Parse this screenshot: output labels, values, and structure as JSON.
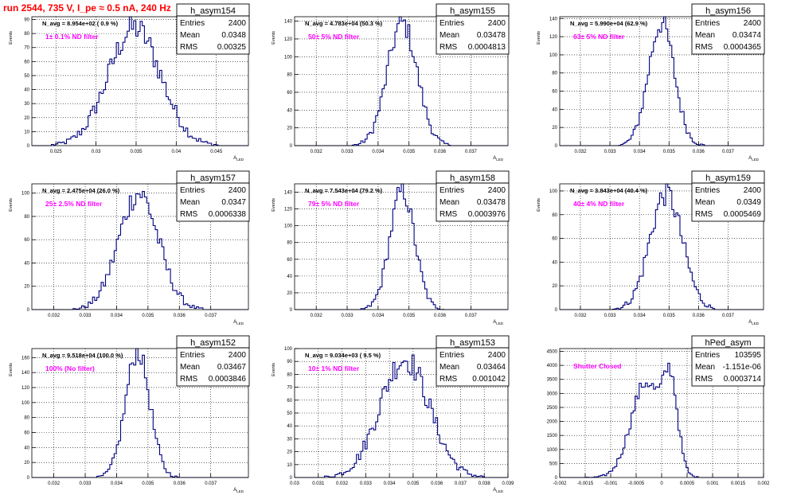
{
  "header": {
    "run_title": "run 2544,   735 V, I_pe ≈ 0.5 nA, 240 Hz"
  },
  "stat_labels": {
    "entries": "Entries",
    "mean": "Mean",
    "rms": "RMS"
  },
  "colors": {
    "hist": "#000080",
    "filter_label": "#ff00ff",
    "title": "#ff0000",
    "grid": "#000000"
  },
  "chart_data": [
    {
      "type": "bar",
      "name": "h_asym154",
      "navg": "N_avg = 8.954e+02 ( 0.9 %)",
      "filter": "1± 0.1% ND filter",
      "ylabel": "Events",
      "xlabel": "A_LED",
      "xlim": [
        0.022,
        0.049
      ],
      "ylim": [
        0,
        92
      ],
      "xticks": [
        0.025,
        0.03,
        0.035,
        0.04,
        0.045
      ],
      "xtick_labels": [
        "0.025",
        "0.03",
        "0.035",
        "0.04",
        "0.045"
      ],
      "yticks": [
        0,
        10,
        20,
        30,
        40,
        50,
        60,
        70,
        80,
        90
      ],
      "stats": {
        "entries": "2400",
        "mean": "0.0348",
        "rms": "0.00325"
      },
      "shape": {
        "mu": 0.0348,
        "sigma": 0.00325,
        "peak": 84
      }
    },
    {
      "type": "bar",
      "name": "h_asym155",
      "navg": "N_avg = 4.783e+04 (50.3 %)",
      "filter": "50± 5% ND filter",
      "ylabel": "Events",
      "xlabel": "A_LED",
      "xlim": [
        0.0313,
        0.0382
      ],
      "ylim": [
        0,
        145
      ],
      "xticks": [
        0.032,
        0.033,
        0.034,
        0.035,
        0.036,
        0.037
      ],
      "xtick_labels": [
        "0.032",
        "0.033",
        "0.034",
        "0.035",
        "0.036",
        "0.037"
      ],
      "yticks": [
        0,
        20,
        40,
        60,
        80,
        100,
        120,
        140
      ],
      "stats": {
        "entries": "2400",
        "mean": "0.03478",
        "rms": "0.0004813"
      },
      "shape": {
        "mu": 0.03478,
        "sigma": 0.0004813,
        "peak": 138
      }
    },
    {
      "type": "bar",
      "name": "h_asym156",
      "navg": "N_avg = 5.990e+04 (62.9 %)",
      "filter": "63± 5% ND filter",
      "ylabel": "Events",
      "xlabel": "A_LED",
      "xlim": [
        0.0313,
        0.0382
      ],
      "ylim": [
        0,
        142
      ],
      "xticks": [
        0.032,
        0.033,
        0.034,
        0.035,
        0.036,
        0.037
      ],
      "xtick_labels": [
        "0.032",
        "0.033",
        "0.034",
        "0.035",
        "0.036",
        "0.037"
      ],
      "yticks": [
        0,
        20,
        40,
        60,
        80,
        100,
        120,
        140
      ],
      "stats": {
        "entries": "2400",
        "mean": "0.03474",
        "rms": "0.0004365"
      },
      "shape": {
        "mu": 0.03474,
        "sigma": 0.0004365,
        "peak": 135
      }
    },
    {
      "type": "bar",
      "name": "h_asym157",
      "navg": "N_avg = 2.475e+04 (26.0 %)",
      "filter": "25± 2.5% ND filter",
      "ylabel": "Events",
      "xlabel": "A_LED",
      "xlim": [
        0.0313,
        0.0382
      ],
      "ylim": [
        0,
        108
      ],
      "xticks": [
        0.032,
        0.033,
        0.034,
        0.035,
        0.036,
        0.037
      ],
      "xtick_labels": [
        "0.032",
        "0.033",
        "0.034",
        "0.035",
        "0.036",
        "0.037"
      ],
      "yticks": [
        0,
        20,
        40,
        60,
        80,
        100
      ],
      "stats": {
        "entries": "2400",
        "mean": "0.0347",
        "rms": "0.0006338"
      },
      "shape": {
        "mu": 0.0347,
        "sigma": 0.0006338,
        "peak": 100
      }
    },
    {
      "type": "bar",
      "name": "h_asym158",
      "navg": "N_avg = 7.543e+04 (79.2 %)",
      "filter": "79± 5% ND filter",
      "ylabel": "Events",
      "xlabel": "A_LED",
      "xlim": [
        0.0313,
        0.0382
      ],
      "ylim": [
        0,
        150
      ],
      "xticks": [
        0.032,
        0.033,
        0.034,
        0.035,
        0.036,
        0.037
      ],
      "xtick_labels": [
        "0.032",
        "0.033",
        "0.034",
        "0.035",
        "0.036",
        "0.037"
      ],
      "yticks": [
        0,
        20,
        40,
        60,
        80,
        100,
        120,
        140
      ],
      "stats": {
        "entries": "2400",
        "mean": "0.03478",
        "rms": "0.0003976"
      },
      "shape": {
        "mu": 0.03478,
        "sigma": 0.0003976,
        "peak": 142
      }
    },
    {
      "type": "bar",
      "name": "h_asym159",
      "navg": "N_avg = 3.843e+04 (40.4 %)",
      "filter": "40± 4% ND filter",
      "ylabel": "Events",
      "xlabel": "A_LED",
      "xlim": [
        0.0313,
        0.0382
      ],
      "ylim": [
        0,
        106
      ],
      "xticks": [
        0.032,
        0.033,
        0.034,
        0.035,
        0.036,
        0.037
      ],
      "xtick_labels": [
        "0.032",
        "0.033",
        "0.034",
        "0.035",
        "0.036",
        "0.037"
      ],
      "yticks": [
        0,
        20,
        40,
        60,
        80,
        100
      ],
      "stats": {
        "entries": "2400",
        "mean": "0.0349",
        "rms": "0.0005469"
      },
      "shape": {
        "mu": 0.0349,
        "sigma": 0.0005469,
        "peak": 98
      }
    },
    {
      "type": "bar",
      "name": "h_asym152",
      "navg": "N_avg = 9.518e+04 (100.0 %)",
      "filter": "100% (No filter)",
      "ylabel": "Events",
      "xlabel": "A_LED",
      "xlim": [
        0.0313,
        0.0382
      ],
      "ylim": [
        0,
        172
      ],
      "xticks": [
        0.032,
        0.033,
        0.034,
        0.035,
        0.036,
        0.037
      ],
      "xtick_labels": [
        "0.032",
        "0.033",
        "0.034",
        "0.035",
        "0.036",
        "0.037"
      ],
      "yticks": [
        0,
        20,
        40,
        60,
        80,
        100,
        120,
        140,
        160
      ],
      "stats": {
        "entries": "2400",
        "mean": "0.03467",
        "rms": "0.0003846"
      },
      "shape": {
        "mu": 0.03467,
        "sigma": 0.0003846,
        "peak": 168
      }
    },
    {
      "type": "bar",
      "name": "h_asym153",
      "navg": "N_avg = 9.034e+03 ( 9.5 %)",
      "filter": "10± 1% ND filter",
      "ylabel": "Events",
      "xlabel": "A_LED",
      "xlim": [
        0.03,
        0.039
      ],
      "ylim": [
        0,
        100
      ],
      "xticks": [
        0.03,
        0.031,
        0.032,
        0.033,
        0.034,
        0.035,
        0.036,
        0.037,
        0.038,
        0.039
      ],
      "xtick_labels": [
        "0.03",
        "0.031",
        "0.032",
        "0.033",
        "0.034",
        "0.035",
        "0.036",
        "0.037",
        "0.038",
        "0.039"
      ],
      "yticks": [
        0,
        10,
        20,
        30,
        40,
        50,
        60,
        70,
        80,
        90,
        100
      ],
      "stats": {
        "entries": "2400",
        "mean": "0.03464",
        "rms": "0.001042"
      },
      "shape": {
        "mu": 0.03464,
        "sigma": 0.001042,
        "peak": 92
      }
    },
    {
      "type": "bar",
      "name": "hPed_asym",
      "navg": "",
      "filter": "Shutter Closed",
      "ylabel": "",
      "xlabel": "",
      "xlim": [
        -0.002,
        0.002
      ],
      "ylim": [
        0,
        4600
      ],
      "xticks": [
        -0.002,
        -0.0015,
        -0.001,
        -0.0005,
        0,
        0.0005,
        0.001,
        0.0015,
        0.002
      ],
      "xtick_labels": [
        "-0.002",
        "-0.0015",
        "-0.001",
        "-0.0005",
        "0",
        "0.0005",
        "0.001",
        "0.0015",
        "0.002"
      ],
      "yticks": [
        0,
        500,
        1000,
        1500,
        2000,
        2500,
        3000,
        3500,
        4000,
        4500
      ],
      "stats": {
        "entries": "103595",
        "mean": "-1.151e-06",
        "rms": "0.0003714"
      },
      "shape": {
        "bimodal": true,
        "peak": 4300
      }
    }
  ]
}
